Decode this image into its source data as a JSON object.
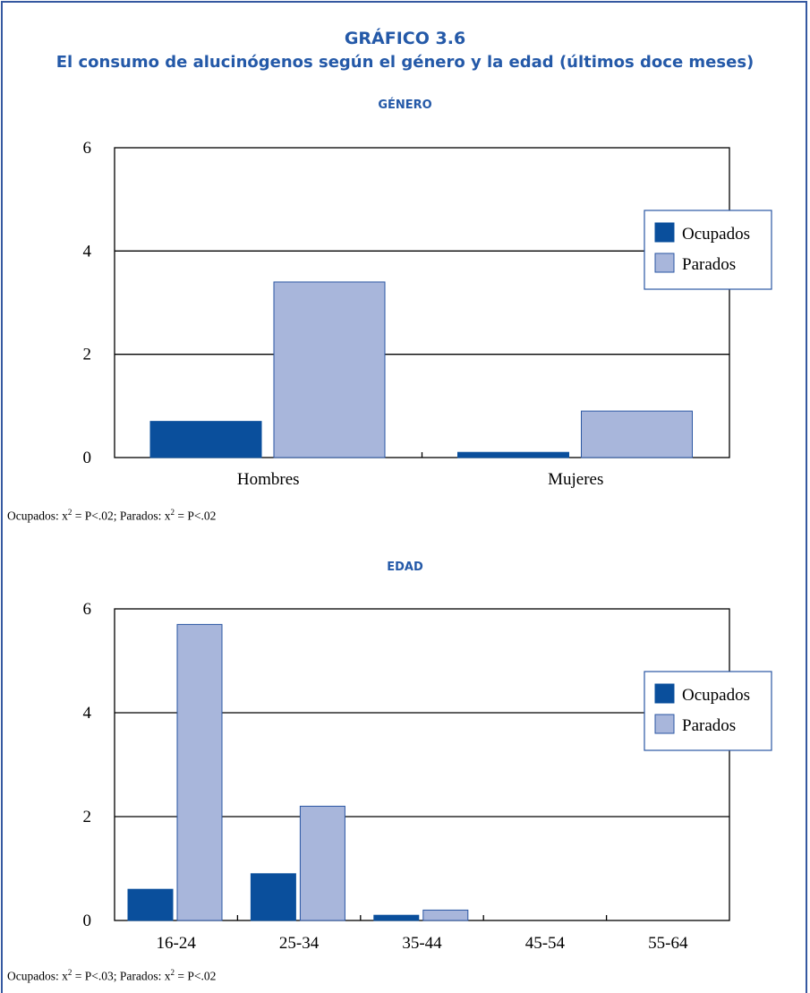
{
  "figure": {
    "number": "GRÁFICO 3.6",
    "title": "El consumo de alucinógenos según el género y la edad (últimos doce meses)"
  },
  "colors": {
    "accent": "#2459a8",
    "ocupados": "#0a4f9c",
    "parados": "#a8b6db",
    "bar_border": "#2a56a3"
  },
  "charts": [
    {
      "section_title": "GÉNERO",
      "note": {
        "a": "Ocupados: x",
        "b": " = P<.02; Parados: x",
        "c": " = P<.02",
        "exp": "2"
      }
    },
    {
      "section_title": "EDAD",
      "note": {
        "a": "Ocupados: x",
        "b": " = P<.03; Parados: x",
        "c": " = P<.02",
        "exp": "2"
      }
    }
  ],
  "chart_data": [
    {
      "type": "bar",
      "title": "GÉNERO",
      "categories": [
        "Hombres",
        "Mujeres"
      ],
      "series": [
        {
          "name": "Ocupados",
          "values": [
            0.7,
            0.1
          ]
        },
        {
          "name": "Parados",
          "values": [
            3.4,
            0.9
          ]
        }
      ],
      "ylim": [
        0,
        6
      ],
      "yticks": [
        0,
        2,
        4,
        6
      ],
      "grid": true,
      "legend": "right"
    },
    {
      "type": "bar",
      "title": "EDAD",
      "categories": [
        "16-24",
        "25-34",
        "35-44",
        "45-54",
        "55-64"
      ],
      "series": [
        {
          "name": "Ocupados",
          "values": [
            0.6,
            0.9,
            0.1,
            0,
            0
          ]
        },
        {
          "name": "Parados",
          "values": [
            5.7,
            2.2,
            0.2,
            0,
            0
          ]
        }
      ],
      "ylim": [
        0,
        6
      ],
      "yticks": [
        0,
        2,
        4,
        6
      ],
      "grid": true,
      "legend": "right"
    }
  ]
}
